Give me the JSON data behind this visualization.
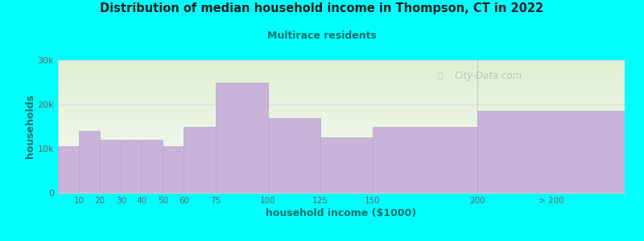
{
  "title": "Distribution of median household income in Thompson, CT in 2022",
  "subtitle": "Multirace residents",
  "xlabel": "household income ($1000)",
  "ylabel": "households",
  "background_outer": "#00FFFF",
  "background_inner_top": "#dff0d0",
  "background_inner_bottom": "#f8f8f8",
  "bar_color": "#c8b4d8",
  "bar_edge_color": "#b8a4c8",
  "title_color": "#222222",
  "subtitle_color": "#007070",
  "axis_label_color": "#007070",
  "tick_label_color": "#666666",
  "grid_color": "#e0e0e0",
  "watermark": "City-Data.com",
  "bar_lefts": [
    0,
    10,
    20,
    30,
    40,
    50,
    60,
    75,
    100,
    125,
    150,
    200
  ],
  "bar_rights": [
    10,
    20,
    30,
    40,
    50,
    60,
    75,
    100,
    125,
    150,
    200,
    999
  ],
  "values": [
    10500,
    14000,
    12000,
    12000,
    12000,
    10500,
    15000,
    25000,
    17000,
    12500,
    15000,
    18500
  ],
  "ylim": [
    0,
    30000
  ],
  "yticks": [
    0,
    10000,
    20000,
    30000
  ],
  "ytick_labels": [
    "0",
    "10k",
    "20k",
    "30k"
  ],
  "xtick_positions": [
    10,
    20,
    30,
    40,
    50,
    60,
    75,
    100,
    125,
    150,
    200
  ],
  "xtick_labels": [
    "10",
    "20",
    "30",
    "40",
    "50",
    "60",
    "75",
    "100",
    "125",
    "150",
    "200"
  ],
  "last_tick_label": "> 200"
}
